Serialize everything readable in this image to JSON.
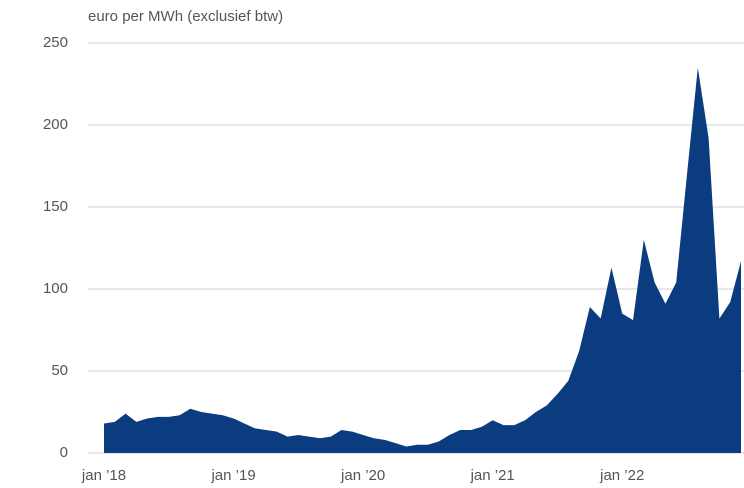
{
  "chart_data": {
    "type": "area",
    "y_label": "euro per MWh (exclusief btw)",
    "categories": [
      "jan ’18",
      null,
      null,
      null,
      null,
      null,
      null,
      null,
      null,
      null,
      null,
      null,
      "jan ’19",
      null,
      null,
      null,
      null,
      null,
      null,
      null,
      null,
      null,
      null,
      null,
      "jan ’20",
      null,
      null,
      null,
      null,
      null,
      null,
      null,
      null,
      null,
      null,
      null,
      "jan ’21",
      null,
      null,
      null,
      null,
      null,
      null,
      null,
      null,
      null,
      null,
      null,
      "jan ’22",
      null,
      null,
      null,
      null,
      null,
      null,
      null,
      null,
      null,
      null,
      null
    ],
    "values": [
      18,
      19,
      24,
      19,
      21,
      22,
      22,
      23,
      27,
      25,
      24,
      23,
      21,
      18,
      15,
      14,
      13,
      10,
      11,
      10,
      9,
      10,
      14,
      13,
      11,
      9,
      8,
      6,
      4,
      5,
      5,
      7,
      11,
      14,
      14,
      16,
      20,
      17,
      17,
      20,
      25,
      29,
      36,
      44,
      62,
      89,
      82,
      113,
      85,
      81,
      130,
      104,
      91,
      104,
      170,
      235,
      192,
      82,
      92,
      117
    ],
    "color": "#0b3c80",
    "ylim": [
      0,
      250
    ],
    "yticks": [
      0,
      50,
      100,
      150,
      200,
      250
    ],
    "grid": true
  }
}
